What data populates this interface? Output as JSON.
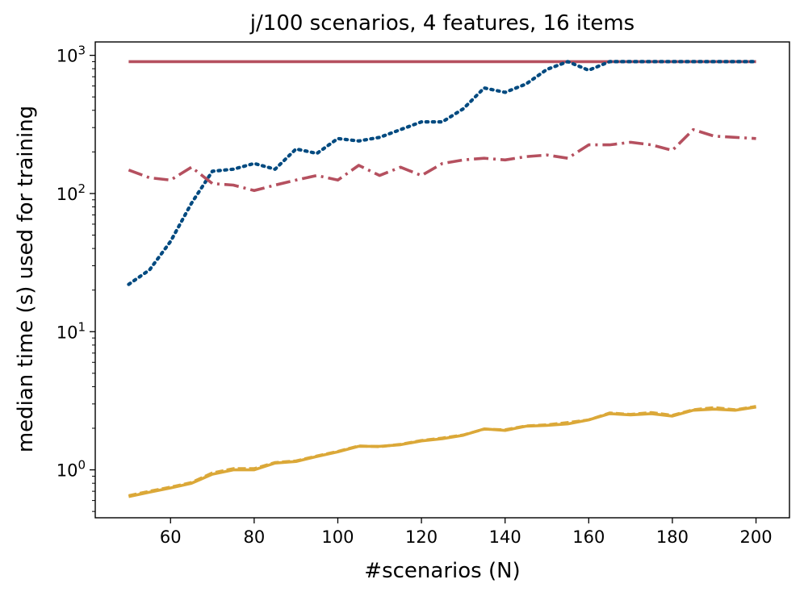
{
  "chart_data": {
    "type": "line",
    "title": "j/100 scenarios, 4 features, 16 items",
    "xlabel": "#scenarios (N)",
    "ylabel": "median time (s) used for training",
    "xlim": [
      42,
      208
    ],
    "ylim": [
      0.45,
      1250
    ],
    "yscale": "log",
    "xticks": [
      60,
      80,
      100,
      120,
      140,
      160,
      180,
      200
    ],
    "yticks": [
      {
        "value": 1,
        "base": "10",
        "exp": "0"
      },
      {
        "value": 10,
        "base": "10",
        "exp": "1"
      },
      {
        "value": 100,
        "base": "10",
        "exp": "2"
      },
      {
        "value": 1000,
        "base": "10",
        "exp": "3"
      }
    ],
    "grid": false,
    "legend": null,
    "x": [
      50,
      55,
      60,
      65,
      70,
      75,
      80,
      85,
      90,
      95,
      100,
      105,
      110,
      115,
      120,
      125,
      130,
      135,
      140,
      145,
      150,
      155,
      160,
      165,
      170,
      175,
      180,
      185,
      190,
      195,
      200
    ],
    "series": [
      {
        "color": "#b5505f",
        "style": "solid",
        "values": [
          900,
          900,
          900,
          900,
          900,
          900,
          900,
          900,
          900,
          900,
          900,
          900,
          900,
          900,
          900,
          900,
          900,
          900,
          900,
          900,
          900,
          900,
          900,
          900,
          900,
          900,
          900,
          900,
          900,
          900,
          900
        ]
      },
      {
        "color": "#004a80",
        "style": "dotted",
        "values": [
          22,
          28,
          45,
          85,
          145,
          150,
          165,
          150,
          210,
          195,
          250,
          240,
          255,
          290,
          330,
          330,
          410,
          580,
          540,
          620,
          790,
          900,
          780,
          900,
          900,
          900,
          900,
          900,
          900,
          900,
          900
        ]
      },
      {
        "color": "#b5505f",
        "style": "dashdot",
        "values": [
          148,
          130,
          125,
          155,
          118,
          115,
          105,
          115,
          125,
          135,
          125,
          160,
          135,
          155,
          135,
          165,
          175,
          180,
          175,
          185,
          190,
          180,
          225,
          225,
          235,
          225,
          205,
          290,
          260,
          255,
          250
        ]
      },
      {
        "color": "#dba838",
        "style": "solid",
        "values": [
          0.64,
          0.69,
          0.74,
          0.8,
          0.93,
          1.0,
          1.0,
          1.12,
          1.15,
          1.25,
          1.35,
          1.48,
          1.48,
          1.52,
          1.62,
          1.68,
          1.78,
          1.98,
          1.93,
          2.07,
          2.1,
          2.15,
          2.3,
          2.55,
          2.5,
          2.55,
          2.45,
          2.7,
          2.75,
          2.7,
          2.85
        ]
      },
      {
        "color": "#dba838",
        "style": "dashed",
        "values": [
          0.65,
          0.7,
          0.75,
          0.81,
          0.95,
          1.02,
          1.02,
          1.13,
          1.16,
          1.26,
          1.36,
          1.49,
          1.47,
          1.53,
          1.63,
          1.7,
          1.79,
          1.97,
          1.95,
          2.08,
          2.12,
          2.2,
          2.3,
          2.58,
          2.52,
          2.6,
          2.48,
          2.72,
          2.82,
          2.72,
          2.88
        ]
      }
    ]
  }
}
